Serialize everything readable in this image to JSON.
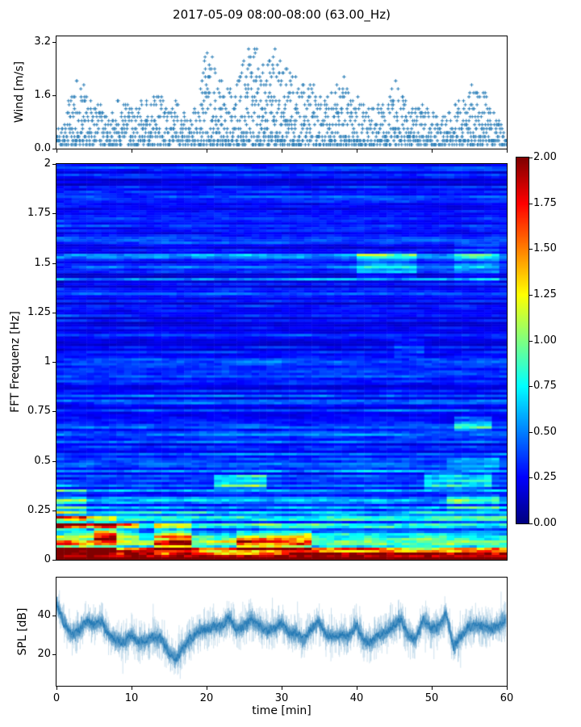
{
  "figure": {
    "title": "2017-05-09 08:00-08:00 (63.00_Hz)"
  },
  "colors": {
    "accent": "#1f77b4",
    "band": "rgba(31,119,180,0.32)",
    "axis": "#000000",
    "background": "#ffffff"
  },
  "chart_data": [
    {
      "id": "wind",
      "type": "scatter",
      "ylabel": "Wind [m/s]",
      "marker": "+",
      "color": "#1f77b4",
      "xlim": [
        0,
        60
      ],
      "ylim": [
        0,
        3.38
      ],
      "yticks": [
        0.0,
        1.6,
        3.2
      ],
      "ytick_labels": [
        "0.0",
        "1.6",
        "3.2"
      ],
      "xticks": [
        0,
        10,
        20,
        30,
        40,
        50,
        60
      ],
      "x_minutes": [
        0,
        1,
        2,
        3,
        4,
        5,
        6,
        7,
        8,
        9,
        10,
        11,
        12,
        13,
        14,
        15,
        16,
        17,
        18,
        19,
        20,
        21,
        22,
        23,
        24,
        25,
        26,
        27,
        28,
        29,
        30,
        31,
        32,
        33,
        34,
        35,
        36,
        37,
        38,
        39,
        40,
        41,
        42,
        43,
        44,
        45,
        46,
        47,
        48,
        49,
        50,
        51,
        52,
        53,
        54,
        55,
        56,
        57,
        58,
        59,
        60
      ],
      "envelope_max_per_min": [
        0.7,
        0.8,
        1.9,
        2.1,
        1.9,
        1.3,
        1.4,
        1.0,
        1.5,
        1.5,
        1.3,
        1.6,
        1.8,
        1.6,
        1.6,
        1.2,
        1.5,
        1.1,
        0.9,
        1.6,
        3.1,
        2.8,
        2.1,
        1.8,
        2.0,
        2.9,
        3.2,
        3.0,
        2.7,
        3.2,
        2.6,
        2.4,
        2.2,
        1.9,
        2.0,
        1.8,
        1.6,
        1.7,
        2.3,
        1.9,
        1.6,
        1.3,
        1.2,
        1.4,
        1.3,
        2.3,
        1.7,
        1.5,
        1.3,
        1.6,
        1.2,
        0.9,
        1.0,
        1.4,
        1.5,
        1.8,
        2.1,
        1.9,
        1.3,
        0.8,
        0.4
      ],
      "base_min": 0.12,
      "y_quantum": 0.12,
      "seed": 42
    },
    {
      "id": "spectrogram",
      "type": "heatmap",
      "ylabel": "FFT Frequenz [Hz]",
      "colormap": "jet",
      "clim": [
        0,
        2
      ],
      "xlim": [
        0,
        60
      ],
      "ylim": [
        0,
        2
      ],
      "yticks": [
        0,
        0.25,
        0.5,
        0.75,
        1,
        1.25,
        1.5,
        1.75,
        2
      ],
      "ytick_labels": [
        "0",
        "0.25",
        "0.5",
        "0.75",
        "1",
        "1.25",
        "1.5",
        "1.75",
        "2"
      ],
      "cols": 60,
      "rows": 163,
      "freq_profile": {
        "base": 0.26,
        "amp1": 1.55,
        "tau1": 0.055,
        "amp2": 0.42,
        "tau2": 0.35
      },
      "noise": {
        "streak_low": 0.55,
        "streak_span": 0.95,
        "bright_row_chance": 0.07,
        "bright_row_gain": 1.6,
        "cell_low": 0.45,
        "cell_span": 1.1,
        "persistence": 0.65,
        "seed": 7
      },
      "hotspots": [
        {
          "t": [
            0,
            4
          ],
          "f": [
            0.15,
            0.35
          ],
          "boost": 1.5
        },
        {
          "t": [
            0,
            8
          ],
          "f": [
            0.04,
            0.22
          ],
          "boost": 1.5
        },
        {
          "t": [
            5,
            11
          ],
          "f": [
            0.1,
            0.2
          ],
          "boost": 1.6
        },
        {
          "t": [
            13,
            18
          ],
          "f": [
            0.05,
            0.2
          ],
          "boost": 1.7
        },
        {
          "t": [
            21,
            28
          ],
          "f": [
            0.35,
            0.43
          ],
          "boost": 2.1
        },
        {
          "t": [
            24,
            34
          ],
          "f": [
            0.05,
            0.15
          ],
          "boost": 1.6
        },
        {
          "t": [
            40,
            48
          ],
          "f": [
            1.42,
            1.56
          ],
          "boost": 1.6
        },
        {
          "t": [
            45,
            49
          ],
          "f": [
            1.02,
            1.12
          ],
          "boost": 1.5
        },
        {
          "t": [
            49,
            58
          ],
          "f": [
            0.36,
            0.44
          ],
          "boost": 1.9
        },
        {
          "t": [
            52,
            59
          ],
          "f": [
            0.46,
            0.52
          ],
          "boost": 1.5
        },
        {
          "t": [
            53,
            58
          ],
          "f": [
            0.65,
            0.72
          ],
          "boost": 1.9
        },
        {
          "t": [
            53,
            59
          ],
          "f": [
            1.4,
            1.6
          ],
          "boost": 1.4
        },
        {
          "t": [
            52,
            59
          ],
          "f": [
            0.25,
            0.33
          ],
          "boost": 1.5
        }
      ]
    },
    {
      "id": "colorbar",
      "type": "colorbar",
      "colormap": "jet",
      "range": [
        0,
        2
      ],
      "ticks": [
        0,
        0.25,
        0.5,
        0.75,
        1,
        1.25,
        1.5,
        1.75,
        2
      ],
      "tick_labels": [
        "0.00",
        "0.25",
        "0.50",
        "0.75",
        "1.00",
        "1.25",
        "1.50",
        "1.75",
        "2.00"
      ]
    },
    {
      "id": "spl",
      "type": "line",
      "ylabel": "SPL [dB]",
      "xlabel": "time [min]",
      "color": "#1f77b4",
      "xlim": [
        0,
        60
      ],
      "ylim": [
        3.8,
        59.4
      ],
      "yticks": [
        20,
        40
      ],
      "ytick_labels": [
        "20",
        "40"
      ],
      "xticks": [
        0,
        10,
        20,
        30,
        40,
        50,
        60
      ],
      "xtick_labels": [
        "0",
        "10",
        "20",
        "30",
        "40",
        "50",
        "60"
      ],
      "x_minutes": [
        0,
        1,
        2,
        3,
        4,
        5,
        6,
        7,
        8,
        9,
        10,
        11,
        12,
        13,
        14,
        15,
        16,
        17,
        18,
        19,
        20,
        21,
        22,
        23,
        24,
        25,
        26,
        27,
        28,
        29,
        30,
        31,
        32,
        33,
        34,
        35,
        36,
        37,
        38,
        39,
        40,
        41,
        42,
        43,
        44,
        45,
        46,
        47,
        48,
        49,
        50,
        51,
        52,
        53,
        54,
        55,
        56,
        57,
        58,
        59,
        60
      ],
      "mean_db": [
        46,
        36,
        30,
        32,
        37,
        35,
        37,
        30,
        27,
        26,
        30,
        26,
        27,
        29,
        28,
        21,
        18,
        24,
        28,
        32,
        33,
        34,
        34,
        39,
        33,
        34,
        38,
        35,
        32,
        33,
        36,
        31,
        31,
        27,
        33,
        37,
        30,
        29,
        30,
        29,
        35,
        27,
        26,
        30,
        31,
        35,
        38,
        29,
        28,
        38,
        33,
        34,
        41,
        24,
        29,
        34,
        35,
        34,
        33,
        34,
        38
      ],
      "noise_amp": 3.5,
      "band_amp": 9,
      "seed": 11
    }
  ]
}
